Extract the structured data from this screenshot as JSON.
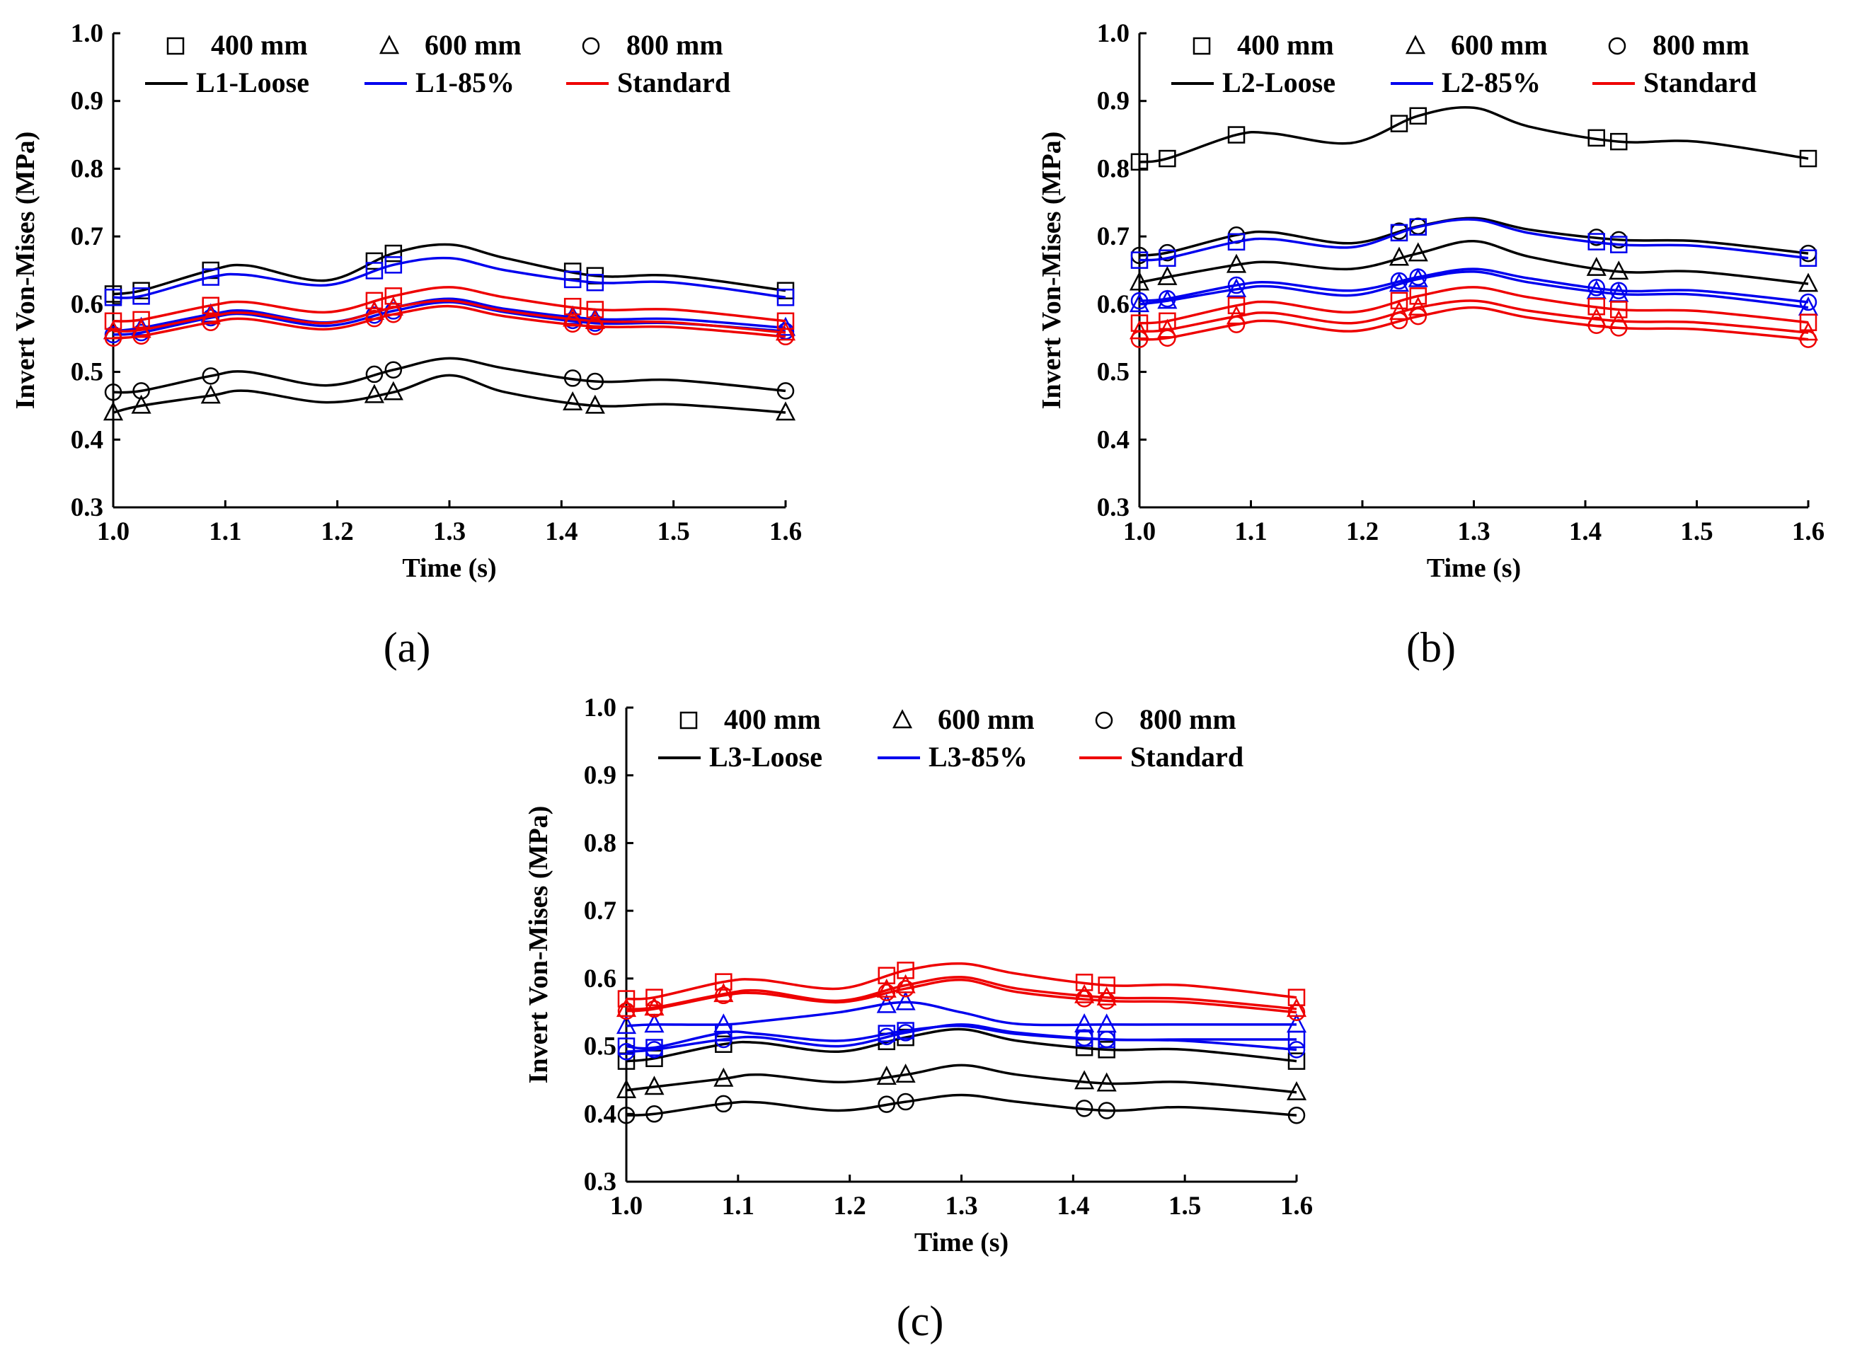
{
  "chart_data": [
    {
      "panel": "a",
      "panel_label": "(a)",
      "type": "line",
      "xlabel": "Time (s)",
      "ylabel": "Invert Von-Mises (MPa)",
      "xlim": [
        1.0,
        1.6
      ],
      "ylim": [
        0.3,
        1.0
      ],
      "xticks": [
        "1.0",
        "1.1",
        "1.2",
        "1.3",
        "1.4",
        "1.5",
        "1.6"
      ],
      "yticks": [
        "0.3",
        "0.4",
        "0.5",
        "0.6",
        "0.7",
        "0.8",
        "0.9",
        "1.0"
      ],
      "legend_markers": [
        {
          "marker": "square",
          "label": "400 mm"
        },
        {
          "marker": "triangle",
          "label": "600 mm"
        },
        {
          "marker": "circle",
          "label": "800 mm"
        }
      ],
      "legend_lines": [
        {
          "label": "L1-Loose",
          "color": "#000000"
        },
        {
          "label": "L1-85%",
          "color": "#0000ee"
        },
        {
          "label": "Standard",
          "color": "#ee0000"
        }
      ],
      "x": [
        1.0,
        1.025,
        1.087,
        1.12,
        1.19,
        1.25,
        1.3,
        1.35,
        1.43,
        1.5,
        1.6
      ],
      "marker_x": [
        1.0,
        1.025,
        1.087,
        1.233,
        1.25,
        1.41,
        1.43,
        1.6
      ],
      "series": [
        {
          "name": "L1-Loose 400 mm",
          "color": "#000000",
          "marker": "square",
          "values": [
            0.615,
            0.62,
            0.65,
            0.657,
            0.635,
            0.675,
            0.688,
            0.668,
            0.642,
            0.642,
            0.62
          ]
        },
        {
          "name": "L1-Loose 600 mm",
          "color": "#000000",
          "marker": "triangle",
          "values": [
            0.44,
            0.45,
            0.465,
            0.472,
            0.455,
            0.47,
            0.495,
            0.47,
            0.45,
            0.452,
            0.44
          ]
        },
        {
          "name": "L1-Loose 800 mm",
          "color": "#000000",
          "marker": "circle",
          "values": [
            0.47,
            0.472,
            0.494,
            0.5,
            0.48,
            0.503,
            0.52,
            0.505,
            0.486,
            0.488,
            0.472
          ]
        },
        {
          "name": "L1-85% 400 mm",
          "color": "#0000ee",
          "marker": "square",
          "values": [
            0.61,
            0.612,
            0.64,
            0.643,
            0.628,
            0.658,
            0.668,
            0.65,
            0.632,
            0.632,
            0.61
          ]
        },
        {
          "name": "L1-85% 600 mm",
          "color": "#0000ee",
          "marker": "triangle",
          "values": [
            0.56,
            0.565,
            0.585,
            0.59,
            0.573,
            0.595,
            0.608,
            0.593,
            0.578,
            0.578,
            0.565
          ]
        },
        {
          "name": "L1-85% 800 mm",
          "color": "#0000ee",
          "marker": "circle",
          "values": [
            0.555,
            0.558,
            0.58,
            0.585,
            0.568,
            0.59,
            0.603,
            0.588,
            0.572,
            0.572,
            0.56
          ]
        },
        {
          "name": "Standard 400 mm",
          "color": "#ee0000",
          "marker": "square",
          "values": [
            0.575,
            0.577,
            0.598,
            0.603,
            0.588,
            0.612,
            0.625,
            0.61,
            0.592,
            0.592,
            0.575
          ]
        },
        {
          "name": "Standard 600 mm",
          "color": "#ee0000",
          "marker": "triangle",
          "values": [
            0.56,
            0.562,
            0.582,
            0.587,
            0.572,
            0.595,
            0.605,
            0.59,
            0.575,
            0.573,
            0.558
          ]
        },
        {
          "name": "Standard 800 mm",
          "color": "#ee0000",
          "marker": "circle",
          "values": [
            0.55,
            0.553,
            0.573,
            0.578,
            0.563,
            0.585,
            0.597,
            0.582,
            0.567,
            0.566,
            0.552
          ]
        }
      ]
    },
    {
      "panel": "b",
      "panel_label": "(b)",
      "type": "line",
      "xlabel": "Time (s)",
      "ylabel": "Invert Von-Mises (MPa)",
      "xlim": [
        1.0,
        1.6
      ],
      "ylim": [
        0.3,
        1.0
      ],
      "xticks": [
        "1.0",
        "1.1",
        "1.2",
        "1.3",
        "1.4",
        "1.5",
        "1.6"
      ],
      "yticks": [
        "0.3",
        "0.4",
        "0.5",
        "0.6",
        "0.7",
        "0.8",
        "0.9",
        "1.0"
      ],
      "legend_markers": [
        {
          "marker": "square",
          "label": "400 mm"
        },
        {
          "marker": "triangle",
          "label": "600 mm"
        },
        {
          "marker": "circle",
          "label": "800 mm"
        }
      ],
      "legend_lines": [
        {
          "label": "L2-Loose",
          "color": "#000000"
        },
        {
          "label": "L2-85%",
          "color": "#0000ee"
        },
        {
          "label": "Standard",
          "color": "#ee0000"
        }
      ],
      "x": [
        1.0,
        1.025,
        1.087,
        1.12,
        1.19,
        1.25,
        1.3,
        1.35,
        1.43,
        1.5,
        1.6
      ],
      "marker_x": [
        1.0,
        1.025,
        1.087,
        1.233,
        1.25,
        1.41,
        1.43,
        1.6
      ],
      "series": [
        {
          "name": "L2-Loose 400 mm",
          "color": "#000000",
          "marker": "square",
          "values": [
            0.81,
            0.815,
            0.85,
            0.852,
            0.838,
            0.878,
            0.89,
            0.862,
            0.84,
            0.84,
            0.815
          ]
        },
        {
          "name": "L2-Loose 600 mm",
          "color": "#000000",
          "marker": "triangle",
          "values": [
            0.632,
            0.64,
            0.658,
            0.662,
            0.652,
            0.675,
            0.693,
            0.67,
            0.648,
            0.648,
            0.63
          ]
        },
        {
          "name": "L2-Loose 800 mm",
          "color": "#000000",
          "marker": "circle",
          "values": [
            0.672,
            0.676,
            0.702,
            0.706,
            0.69,
            0.715,
            0.727,
            0.71,
            0.695,
            0.693,
            0.675
          ]
        },
        {
          "name": "L2-85% 400 mm",
          "color": "#0000ee",
          "marker": "square",
          "values": [
            0.665,
            0.668,
            0.692,
            0.696,
            0.684,
            0.714,
            0.725,
            0.705,
            0.688,
            0.686,
            0.668
          ]
        },
        {
          "name": "L2-85% 600 mm",
          "color": "#0000ee",
          "marker": "triangle",
          "values": [
            0.6,
            0.605,
            0.622,
            0.626,
            0.613,
            0.637,
            0.648,
            0.632,
            0.615,
            0.614,
            0.595
          ]
        },
        {
          "name": "L2-85% 800 mm",
          "color": "#0000ee",
          "marker": "circle",
          "values": [
            0.605,
            0.608,
            0.628,
            0.632,
            0.62,
            0.64,
            0.652,
            0.638,
            0.62,
            0.62,
            0.603
          ]
        },
        {
          "name": "Standard 400 mm",
          "color": "#ee0000",
          "marker": "square",
          "values": [
            0.572,
            0.575,
            0.598,
            0.603,
            0.588,
            0.612,
            0.625,
            0.61,
            0.592,
            0.59,
            0.573
          ]
        },
        {
          "name": "Standard 600 mm",
          "color": "#ee0000",
          "marker": "triangle",
          "values": [
            0.56,
            0.562,
            0.582,
            0.587,
            0.572,
            0.595,
            0.605,
            0.59,
            0.575,
            0.573,
            0.558
          ]
        },
        {
          "name": "Standard 800 mm",
          "color": "#ee0000",
          "marker": "circle",
          "values": [
            0.548,
            0.55,
            0.57,
            0.575,
            0.56,
            0.582,
            0.595,
            0.58,
            0.565,
            0.563,
            0.548
          ]
        }
      ]
    },
    {
      "panel": "c",
      "panel_label": "(c)",
      "type": "line",
      "xlabel": "Time (s)",
      "ylabel": "Invert Von-Mises (MPa)",
      "xlim": [
        1.0,
        1.6
      ],
      "ylim": [
        0.3,
        1.0
      ],
      "xticks": [
        "1.0",
        "1.1",
        "1.2",
        "1.3",
        "1.4",
        "1.5",
        "1.6"
      ],
      "yticks": [
        "0.3",
        "0.4",
        "0.5",
        "0.6",
        "0.7",
        "0.8",
        "0.9",
        "1.0"
      ],
      "legend_markers": [
        {
          "marker": "square",
          "label": "400 mm"
        },
        {
          "marker": "triangle",
          "label": "600 mm"
        },
        {
          "marker": "circle",
          "label": "800 mm"
        }
      ],
      "legend_lines": [
        {
          "label": "L3-Loose",
          "color": "#000000"
        },
        {
          "label": "L3-85%",
          "color": "#0000ee"
        },
        {
          "label": "Standard",
          "color": "#ee0000"
        }
      ],
      "x": [
        1.0,
        1.025,
        1.087,
        1.12,
        1.19,
        1.25,
        1.3,
        1.35,
        1.43,
        1.5,
        1.6
      ],
      "marker_x": [
        1.0,
        1.025,
        1.087,
        1.233,
        1.25,
        1.41,
        1.43,
        1.6
      ],
      "series": [
        {
          "name": "L3-Loose 400 mm",
          "color": "#000000",
          "marker": "square",
          "values": [
            0.478,
            0.482,
            0.503,
            0.505,
            0.492,
            0.513,
            0.525,
            0.508,
            0.495,
            0.495,
            0.478
          ]
        },
        {
          "name": "L3-Loose 600 mm",
          "color": "#000000",
          "marker": "triangle",
          "values": [
            0.435,
            0.44,
            0.452,
            0.458,
            0.447,
            0.458,
            0.472,
            0.458,
            0.445,
            0.447,
            0.432
          ]
        },
        {
          "name": "L3-Loose 800 mm",
          "color": "#000000",
          "marker": "circle",
          "values": [
            0.398,
            0.4,
            0.415,
            0.417,
            0.405,
            0.418,
            0.428,
            0.418,
            0.405,
            0.41,
            0.398
          ]
        },
        {
          "name": "L3-85% 400 mm",
          "color": "#0000ee",
          "marker": "square",
          "values": [
            0.5,
            0.498,
            0.52,
            0.518,
            0.508,
            0.523,
            0.53,
            0.518,
            0.51,
            0.51,
            0.51
          ]
        },
        {
          "name": "L3-85% 600 mm",
          "color": "#0000ee",
          "marker": "triangle",
          "values": [
            0.53,
            0.532,
            0.532,
            0.537,
            0.55,
            0.565,
            0.55,
            0.533,
            0.532,
            0.532,
            0.532
          ]
        },
        {
          "name": "L3-85% 800 mm",
          "color": "#0000ee",
          "marker": "circle",
          "values": [
            0.492,
            0.495,
            0.51,
            0.513,
            0.5,
            0.52,
            0.532,
            0.52,
            0.51,
            0.508,
            0.495
          ]
        },
        {
          "name": "Standard 400 mm",
          "color": "#ee0000",
          "marker": "square",
          "values": [
            0.57,
            0.572,
            0.595,
            0.598,
            0.585,
            0.612,
            0.622,
            0.607,
            0.59,
            0.59,
            0.572
          ]
        },
        {
          "name": "Standard 600 mm",
          "color": "#ee0000",
          "marker": "triangle",
          "values": [
            0.555,
            0.557,
            0.577,
            0.582,
            0.567,
            0.59,
            0.602,
            0.585,
            0.572,
            0.57,
            0.555
          ]
        },
        {
          "name": "Standard 800 mm",
          "color": "#ee0000",
          "marker": "circle",
          "values": [
            0.552,
            0.555,
            0.575,
            0.578,
            0.565,
            0.585,
            0.598,
            0.58,
            0.567,
            0.565,
            0.55
          ]
        }
      ]
    }
  ]
}
